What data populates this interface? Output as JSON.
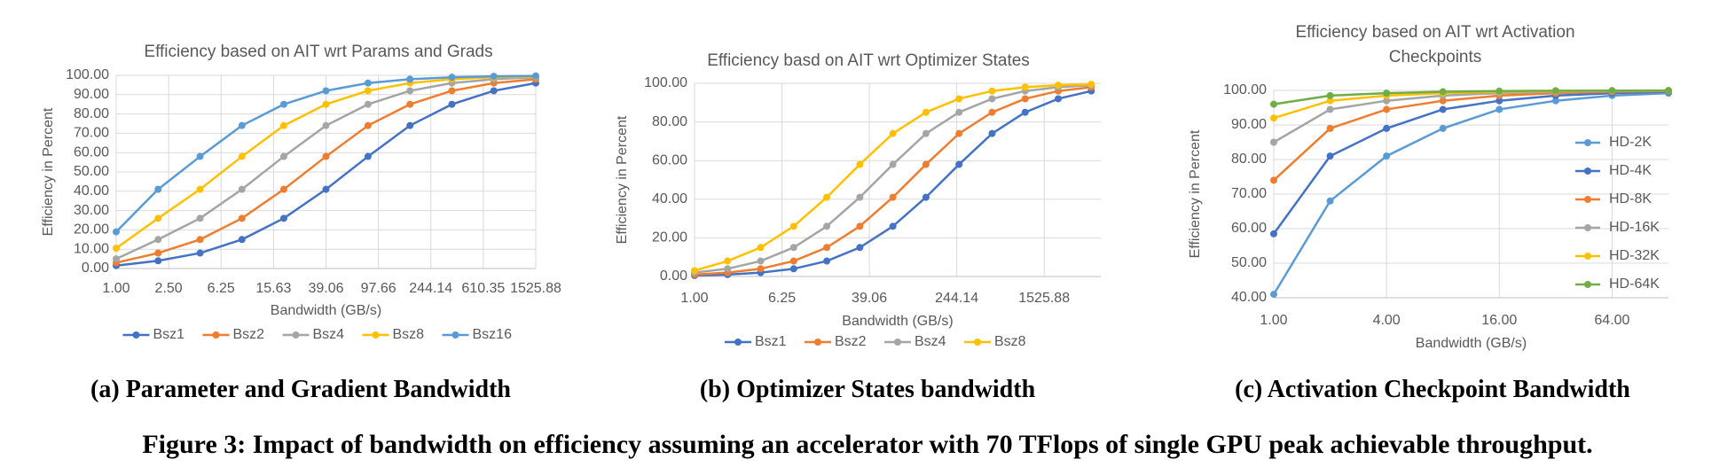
{
  "chart_data": [
    {
      "type": "line",
      "title": "Efficiency based on AIT wrt Params and Grads",
      "x_label": "Bandwidth (GB/s)",
      "y_label": "Efficiency in Percent",
      "x": [
        1,
        2.08,
        4.33,
        9.0,
        18.7,
        39.06,
        81.4,
        169.5,
        352.6,
        733.6,
        1525.88
      ],
      "series": [
        {
          "name": "Bsz1",
          "color": "#4472c4",
          "values": [
            1.5,
            4,
            8,
            15,
            26,
            41,
            58,
            74,
            85,
            92,
            96
          ]
        },
        {
          "name": "Bsz2",
          "color": "#ed7d31",
          "values": [
            3,
            8,
            15,
            26,
            41,
            58,
            74,
            85,
            92,
            96,
            98
          ]
        },
        {
          "name": "Bsz4",
          "color": "#a5a5a5",
          "values": [
            5,
            15,
            26,
            41,
            58,
            74,
            85,
            92,
            96,
            98,
            99
          ]
        },
        {
          "name": "Bsz8",
          "color": "#ffc000",
          "values": [
            10.5,
            26,
            41,
            58,
            74,
            85,
            92,
            96,
            98,
            99,
            99.5
          ]
        },
        {
          "name": "Bsz16",
          "color": "#5b9bd5",
          "values": [
            19,
            41,
            58,
            74,
            85,
            92,
            96,
            98,
            99,
            99.5,
            99.7
          ]
        }
      ],
      "xscale": "log",
      "xlim": [
        1,
        1525.88
      ],
      "xticks": [
        {
          "value": 1,
          "label": "1.00"
        },
        {
          "value": 2.5,
          "label": "2.50"
        },
        {
          "value": 6.25,
          "label": "6.25"
        },
        {
          "value": 15.63,
          "label": "15.63"
        },
        {
          "value": 39.06,
          "label": "39.06"
        },
        {
          "value": 97.66,
          "label": "97.66"
        },
        {
          "value": 244.14,
          "label": "244.14"
        },
        {
          "value": 610.35,
          "label": "610.35"
        },
        {
          "value": 1525.88,
          "label": "1525.88"
        }
      ],
      "ylim": [
        0,
        100
      ],
      "yticks": [
        {
          "value": 0,
          "label": "0.00"
        },
        {
          "value": 10,
          "label": "10.00"
        },
        {
          "value": 20,
          "label": "20.00"
        },
        {
          "value": 30,
          "label": "30.00"
        },
        {
          "value": 40,
          "label": "40.00"
        },
        {
          "value": 50,
          "label": "50.00"
        },
        {
          "value": 60,
          "label": "60.00"
        },
        {
          "value": 70,
          "label": "70.00"
        },
        {
          "value": 80,
          "label": "80.00"
        },
        {
          "value": 90,
          "label": "90.00"
        },
        {
          "value": 100,
          "label": "100.00"
        }
      ],
      "grid": true,
      "legend": "bottom",
      "caption": "(a) Parameter and Gradient Bandwidth"
    },
    {
      "type": "line",
      "title": "Efficiency basd on AIT wrt Optimizer States",
      "x_label": "Bandwidth (GB/s)",
      "y_label": "Efficiency in Percent",
      "x": [
        1,
        2,
        4,
        8,
        16,
        32,
        64,
        128,
        256,
        512,
        1024,
        2048,
        4096
      ],
      "series": [
        {
          "name": "Bsz1",
          "color": "#4472c4",
          "values": [
            0.5,
            1,
            2,
            4,
            8,
            15,
            26,
            41,
            58,
            74,
            85,
            92,
            96
          ]
        },
        {
          "name": "Bsz2",
          "color": "#ed7d31",
          "values": [
            1,
            2,
            4,
            8,
            15,
            26,
            41,
            58,
            74,
            85,
            92,
            96,
            98
          ]
        },
        {
          "name": "Bsz4",
          "color": "#a5a5a5",
          "values": [
            2,
            4,
            8,
            15,
            26,
            41,
            58,
            74,
            85,
            92,
            96,
            98,
            99
          ]
        },
        {
          "name": "Bsz8",
          "color": "#ffc000",
          "values": [
            3,
            8,
            15,
            26,
            41,
            58,
            74,
            85,
            92,
            96,
            98,
            99,
            99.5
          ]
        }
      ],
      "xscale": "log",
      "xlim": [
        1,
        5000
      ],
      "xticks": [
        {
          "value": 1,
          "label": "1.00"
        },
        {
          "value": 6.25,
          "label": "6.25"
        },
        {
          "value": 39.06,
          "label": "39.06"
        },
        {
          "value": 244.14,
          "label": "244.14"
        },
        {
          "value": 1525.88,
          "label": "1525.88"
        }
      ],
      "ylim": [
        0,
        100
      ],
      "yticks": [
        {
          "value": 0,
          "label": "0.00"
        },
        {
          "value": 20,
          "label": "20.00"
        },
        {
          "value": 40,
          "label": "40.00"
        },
        {
          "value": 60,
          "label": "60.00"
        },
        {
          "value": 80,
          "label": "80.00"
        },
        {
          "value": 100,
          "label": "100.00"
        }
      ],
      "grid": true,
      "legend": "bottom",
      "caption": "(b) Optimizer States bandwidth"
    },
    {
      "type": "line",
      "title": "Efficiency based on AIT wrt Activation Checkpoints",
      "x_label": "Bandwidth (GB/s)",
      "y_label": "Efficiency in Percent",
      "x": [
        1,
        2,
        4,
        8,
        16,
        32,
        64,
        128
      ],
      "series": [
        {
          "name": "HD-2K",
          "color": "#5b9bd5",
          "values": [
            41,
            68,
            81,
            89,
            94.5,
            97,
            98.5,
            99.2
          ]
        },
        {
          "name": "HD-4K",
          "color": "#4472c4",
          "values": [
            58.5,
            81,
            89,
            94.5,
            97,
            98.5,
            99.2,
            99.6
          ]
        },
        {
          "name": "HD-8K",
          "color": "#ed7d31",
          "values": [
            74,
            89,
            94.5,
            97,
            98.5,
            99.2,
            99.6,
            99.8
          ]
        },
        {
          "name": "HD-16K",
          "color": "#a5a5a5",
          "values": [
            85,
            94.5,
            97,
            98.5,
            99.2,
            99.6,
            99.8,
            99.9
          ]
        },
        {
          "name": "HD-32K",
          "color": "#ffc000",
          "values": [
            92,
            97,
            98.5,
            99.2,
            99.6,
            99.8,
            99.9,
            99.95
          ]
        },
        {
          "name": "HD-64K",
          "color": "#70ad47",
          "values": [
            96,
            98.5,
            99.2,
            99.6,
            99.8,
            99.9,
            99.95,
            99.98
          ]
        }
      ],
      "xscale": "log",
      "xlim": [
        1,
        128
      ],
      "xticks": [
        {
          "value": 1,
          "label": "1.00"
        },
        {
          "value": 4,
          "label": "4.00"
        },
        {
          "value": 16,
          "label": "16.00"
        },
        {
          "value": 64,
          "label": "64.00"
        }
      ],
      "ylim": [
        40,
        100
      ],
      "yticks": [
        {
          "value": 40,
          "label": "40.00"
        },
        {
          "value": 50,
          "label": "50.00"
        },
        {
          "value": 60,
          "label": "60.00"
        },
        {
          "value": 70,
          "label": "70.00"
        },
        {
          "value": 80,
          "label": "80.00"
        },
        {
          "value": 90,
          "label": "90.00"
        },
        {
          "value": 100,
          "label": "100.00"
        }
      ],
      "grid": true,
      "legend": "right",
      "caption": "(c) Activation Checkpoint Bandwidth"
    }
  ],
  "figure_caption": "Figure 3: Impact of bandwidth on efficiency assuming an accelerator with 70 TFlops of single GPU peak achievable throughput."
}
